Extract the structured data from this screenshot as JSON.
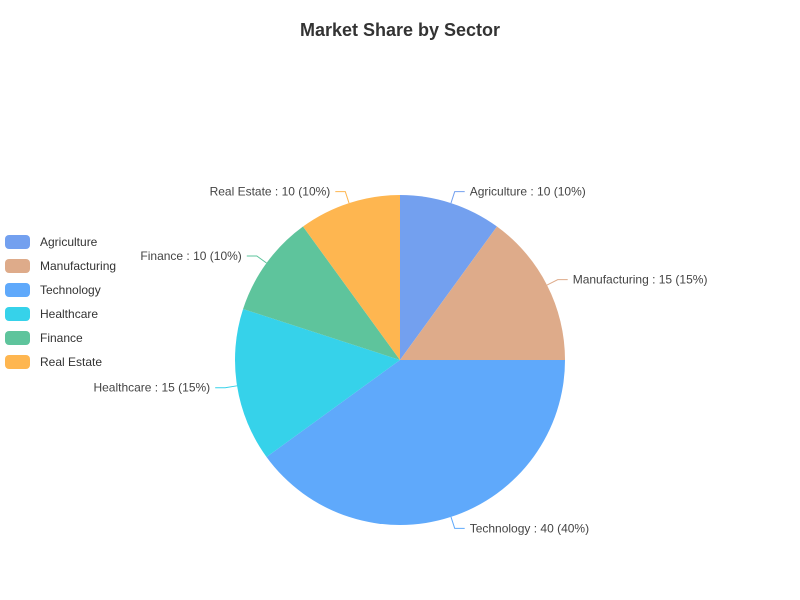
{
  "chart_data": {
    "type": "pie",
    "title": "Market Share by Sector",
    "legend_position": "left",
    "slices": [
      {
        "name": "Agriculture",
        "value": 10,
        "percent": "10%",
        "color": "#73a0ef"
      },
      {
        "name": "Manufacturing",
        "value": 15,
        "percent": "15%",
        "color": "#deab8a"
      },
      {
        "name": "Technology",
        "value": 40,
        "percent": "40%",
        "color": "#5fa9fb"
      },
      {
        "name": "Healthcare",
        "value": 15,
        "percent": "15%",
        "color": "#36d2ea"
      },
      {
        "name": "Finance",
        "value": 10,
        "percent": "10%",
        "color": "#5ec49c"
      },
      {
        "name": "Real Estate",
        "value": 10,
        "percent": "10%",
        "color": "#feb650"
      }
    ]
  }
}
